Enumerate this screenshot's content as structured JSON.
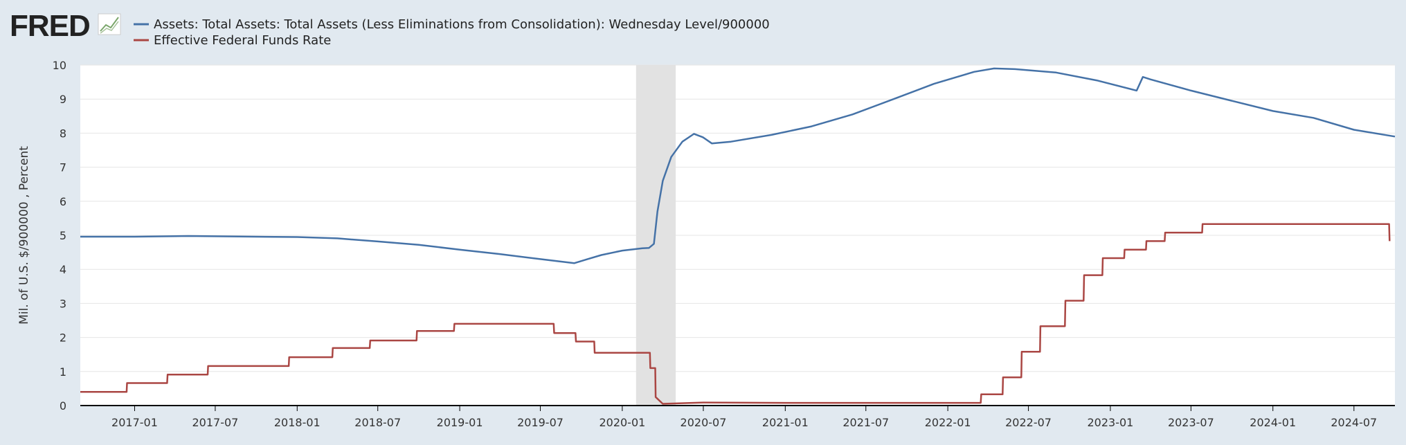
{
  "logo": {
    "text": "FRED",
    "icon": "fred-chart-icon"
  },
  "colors": {
    "background": "#e1e9f0",
    "plot": "#ffffff",
    "grid": "#e6e6e6",
    "assets": "#4572a7",
    "fedfunds": "#aa4643",
    "recession": "#e2e2e2",
    "axis": "#000000"
  },
  "chart_data": {
    "type": "line",
    "ylabel": "Mil. of U.S. $/900000 , Percent",
    "ylim": [
      0,
      10
    ],
    "y_ticks": [
      "0",
      "1",
      "2",
      "3",
      "4",
      "5",
      "6",
      "7",
      "8",
      "9",
      "10"
    ],
    "xlim": [
      "2016-09-01",
      "2024-10-01"
    ],
    "x_ticks": [
      "2017-01",
      "2017-07",
      "2018-01",
      "2018-07",
      "2019-01",
      "2019-07",
      "2020-01",
      "2020-07",
      "2021-01",
      "2021-07",
      "2022-01",
      "2022-07",
      "2023-01",
      "2023-07",
      "2024-01",
      "2024-07"
    ],
    "grid": true,
    "legend_position": "top-left",
    "recession": {
      "start": "2020-02-01",
      "end": "2020-04-30"
    },
    "series": [
      {
        "name": "Assets: Total Assets: Total Assets (Less Eliminations from Consolidation): Wednesday Level/900000",
        "color": "#4572a7",
        "points": [
          [
            "2016-09-01",
            4.96
          ],
          [
            "2017-01-01",
            4.96
          ],
          [
            "2017-05-01",
            4.98
          ],
          [
            "2017-10-01",
            4.96
          ],
          [
            "2018-01-01",
            4.95
          ],
          [
            "2018-04-01",
            4.91
          ],
          [
            "2018-07-01",
            4.82
          ],
          [
            "2018-10-01",
            4.72
          ],
          [
            "2019-01-01",
            4.58
          ],
          [
            "2019-04-01",
            4.45
          ],
          [
            "2019-07-01",
            4.3
          ],
          [
            "2019-09-15",
            4.18
          ],
          [
            "2019-10-15",
            4.3
          ],
          [
            "2019-11-15",
            4.42
          ],
          [
            "2020-01-01",
            4.55
          ],
          [
            "2020-02-15",
            4.62
          ],
          [
            "2020-03-01",
            4.63
          ],
          [
            "2020-03-12",
            4.75
          ],
          [
            "2020-03-20",
            5.7
          ],
          [
            "2020-04-01",
            6.6
          ],
          [
            "2020-04-20",
            7.3
          ],
          [
            "2020-05-15",
            7.75
          ],
          [
            "2020-06-10",
            7.98
          ],
          [
            "2020-06-30",
            7.88
          ],
          [
            "2020-07-20",
            7.7
          ],
          [
            "2020-09-01",
            7.75
          ],
          [
            "2020-12-01",
            7.95
          ],
          [
            "2021-03-01",
            8.2
          ],
          [
            "2021-06-01",
            8.55
          ],
          [
            "2021-09-01",
            9.0
          ],
          [
            "2021-12-01",
            9.45
          ],
          [
            "2022-03-01",
            9.8
          ],
          [
            "2022-04-15",
            9.9
          ],
          [
            "2022-06-01",
            9.88
          ],
          [
            "2022-09-01",
            9.78
          ],
          [
            "2022-12-01",
            9.55
          ],
          [
            "2023-03-01",
            9.25
          ],
          [
            "2023-03-15",
            9.65
          ],
          [
            "2023-04-01",
            9.58
          ],
          [
            "2023-07-01",
            9.25
          ],
          [
            "2023-10-01",
            8.95
          ],
          [
            "2024-01-01",
            8.65
          ],
          [
            "2024-04-01",
            8.45
          ],
          [
            "2024-07-01",
            8.1
          ],
          [
            "2024-10-01",
            7.9
          ]
        ]
      },
      {
        "name": "Effective Federal Funds Rate",
        "color": "#aa4643",
        "points": [
          [
            "2016-09-01",
            0.4
          ],
          [
            "2016-12-14",
            0.4
          ],
          [
            "2016-12-15",
            0.66
          ],
          [
            "2017-03-15",
            0.66
          ],
          [
            "2017-03-16",
            0.91
          ],
          [
            "2017-06-14",
            0.91
          ],
          [
            "2017-06-15",
            1.16
          ],
          [
            "2017-12-13",
            1.16
          ],
          [
            "2017-12-14",
            1.42
          ],
          [
            "2018-03-21",
            1.42
          ],
          [
            "2018-03-22",
            1.69
          ],
          [
            "2018-06-13",
            1.69
          ],
          [
            "2018-06-14",
            1.91
          ],
          [
            "2018-09-26",
            1.91
          ],
          [
            "2018-09-27",
            2.19
          ],
          [
            "2018-12-19",
            2.19
          ],
          [
            "2018-12-20",
            2.4
          ],
          [
            "2019-07-31",
            2.4
          ],
          [
            "2019-08-01",
            2.13
          ],
          [
            "2019-09-18",
            2.13
          ],
          [
            "2019-09-19",
            1.88
          ],
          [
            "2019-10-30",
            1.88
          ],
          [
            "2019-10-31",
            1.55
          ],
          [
            "2020-03-03",
            1.55
          ],
          [
            "2020-03-04",
            1.1
          ],
          [
            "2020-03-15",
            1.1
          ],
          [
            "2020-03-16",
            0.25
          ],
          [
            "2020-04-01",
            0.05
          ],
          [
            "2020-07-01",
            0.09
          ],
          [
            "2021-01-01",
            0.08
          ],
          [
            "2021-07-01",
            0.08
          ],
          [
            "2022-03-16",
            0.08
          ],
          [
            "2022-03-17",
            0.33
          ],
          [
            "2022-05-04",
            0.33
          ],
          [
            "2022-05-05",
            0.83
          ],
          [
            "2022-06-15",
            0.83
          ],
          [
            "2022-06-16",
            1.58
          ],
          [
            "2022-07-27",
            1.58
          ],
          [
            "2022-07-28",
            2.33
          ],
          [
            "2022-09-21",
            2.33
          ],
          [
            "2022-09-22",
            3.08
          ],
          [
            "2022-11-02",
            3.08
          ],
          [
            "2022-11-03",
            3.83
          ],
          [
            "2022-12-14",
            3.83
          ],
          [
            "2022-12-15",
            4.33
          ],
          [
            "2023-02-01",
            4.33
          ],
          [
            "2023-02-02",
            4.58
          ],
          [
            "2023-03-22",
            4.58
          ],
          [
            "2023-03-23",
            4.83
          ],
          [
            "2023-05-03",
            4.83
          ],
          [
            "2023-05-04",
            5.08
          ],
          [
            "2023-07-26",
            5.08
          ],
          [
            "2023-07-27",
            5.33
          ],
          [
            "2024-09-18",
            5.33
          ],
          [
            "2024-09-19",
            4.83
          ]
        ]
      }
    ]
  }
}
